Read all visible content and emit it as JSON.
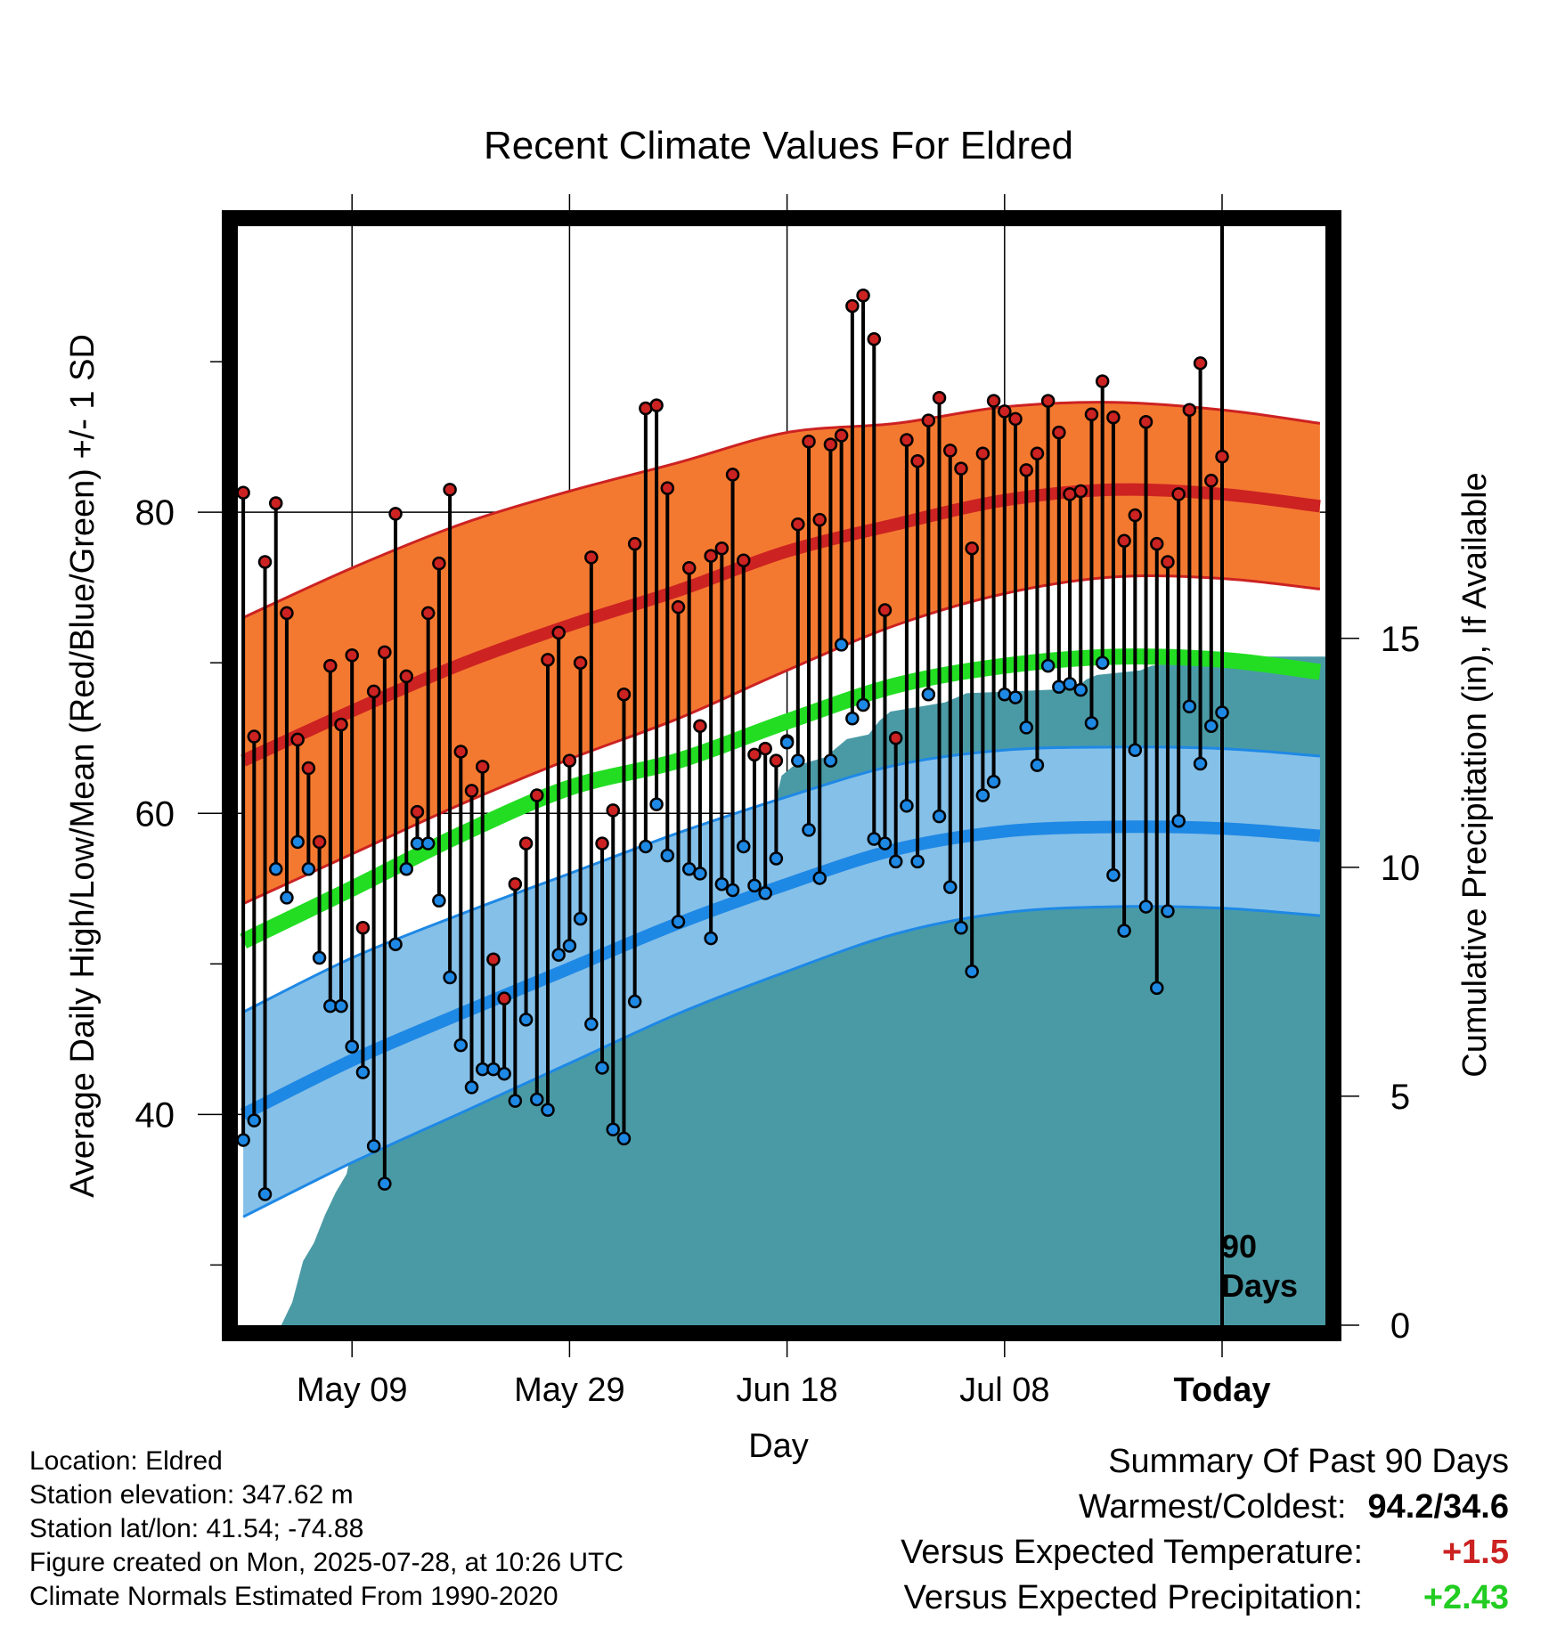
{
  "chart_data": {
    "type": "line",
    "title": "Recent Climate Values For Eldred",
    "xlabel": "Day",
    "ylabel": "Average Daily High/Low/Mean (Red/Blue/Green) +/- 1 SD",
    "y2label": "Cumulative Precipitation (in), If Available",
    "ylim": [
      26,
      99
    ],
    "y2lim": [
      0,
      24
    ],
    "xlim": [
      -0.5,
      99.5
    ],
    "x_tick_days": [
      10,
      30,
      50,
      70,
      90
    ],
    "x_tick_labels": [
      "May 09",
      "May 29",
      "Jun 18",
      "Jul 08",
      "Today"
    ],
    "y_ticks": [
      40,
      60,
      80
    ],
    "y_minor_ticks": [
      30,
      50,
      70,
      90
    ],
    "y2_ticks": [
      0,
      5,
      10,
      15
    ],
    "today_label": "90 Days",
    "grid": true,
    "colors": {
      "high": "#cc2222",
      "high_band": "#f47930",
      "low": "#1e88e5",
      "low_band": "#85c0e8",
      "mean": "#22dd22",
      "precip": "#4a9aa5"
    },
    "normals": {
      "x": [
        0,
        10,
        20,
        30,
        40,
        50,
        60,
        70,
        80,
        90,
        99
      ],
      "high_mean": [
        63.5,
        66.8,
        69.9,
        72.5,
        74.8,
        77.4,
        79.2,
        80.8,
        81.5,
        81.2,
        80.4
      ],
      "high_sd": [
        9.5,
        9.5,
        9.3,
        8.9,
        8.5,
        7.9,
        6.7,
        6.2,
        5.8,
        5.6,
        5.5
      ],
      "low_mean": [
        40.0,
        43.6,
        46.7,
        49.7,
        52.7,
        55.3,
        57.6,
        58.8,
        59.1,
        59.0,
        58.5
      ],
      "low_sd": [
        6.8,
        6.8,
        6.6,
        6.3,
        6.0,
        5.8,
        5.6,
        5.4,
        5.3,
        5.3,
        5.3
      ],
      "mean_mean": [
        51.5,
        55.0,
        58.6,
        61.7,
        63.5,
        66.1,
        68.5,
        69.8,
        70.4,
        70.2,
        69.4
      ]
    },
    "series": [
      {
        "name": "High",
        "values": [
          81.3,
          65.1,
          76.7,
          80.6,
          73.3,
          64.9,
          63.0,
          58.1,
          69.8,
          65.9,
          70.5,
          52.4,
          68.1,
          70.7,
          79.9,
          69.1,
          60.1,
          73.3,
          76.6,
          81.5,
          64.1,
          61.5,
          63.1,
          50.3,
          47.7,
          55.3,
          58.0,
          61.2,
          70.2,
          72.0,
          63.5,
          70.0,
          77.0,
          58.0,
          60.2,
          67.9,
          77.9,
          86.9,
          87.1,
          81.6,
          73.7,
          76.3,
          65.8,
          77.1,
          77.6,
          82.5,
          76.8,
          63.9,
          64.3,
          63.5,
          64.8,
          79.2,
          84.7,
          79.5,
          84.5,
          85.1,
          93.7,
          94.4,
          91.5,
          73.5,
          65.0,
          84.8,
          83.4,
          86.1,
          87.6,
          84.1,
          82.9,
          77.6,
          83.9,
          87.4,
          86.7,
          86.2,
          82.8,
          83.9,
          87.4,
          85.3,
          81.2,
          81.4,
          86.5,
          88.7,
          86.3,
          78.1,
          79.8,
          86.0,
          77.9,
          76.7,
          81.2,
          86.8,
          89.9,
          82.1,
          83.7
        ],
        "lows": [
          38.3,
          39.6,
          34.7,
          56.3,
          54.4,
          58.1,
          56.3,
          50.4,
          47.2,
          47.2,
          44.5,
          42.8,
          37.9,
          35.4,
          51.3,
          56.3,
          58.0,
          58.0,
          54.2,
          49.1,
          44.6,
          41.8,
          43.0,
          43.0,
          42.7,
          40.9,
          46.3,
          41.0,
          40.3,
          50.6,
          51.2,
          53.0,
          46.0,
          43.1,
          39.0,
          38.4,
          47.5,
          57.8,
          60.6,
          57.2,
          52.8,
          56.3,
          56.0,
          51.7,
          55.3,
          54.9,
          57.8,
          55.2,
          54.7,
          57.0,
          64.7,
          63.5,
          58.9,
          55.7,
          63.5,
          71.2,
          66.3,
          67.2,
          58.3,
          58.0,
          56.8,
          60.5,
          56.8,
          67.9,
          59.8,
          55.1,
          52.4,
          49.5,
          61.2,
          62.1,
          67.9,
          67.7,
          65.7,
          63.2,
          69.8,
          68.4,
          68.6,
          68.2,
          66.0,
          70.0,
          55.9,
          52.2,
          64.2,
          53.8,
          48.4,
          53.5,
          59.5,
          67.1,
          63.3,
          65.8,
          66.7
        ]
      },
      {
        "name": "Cumulative Precipitation",
        "x": [
          -0.5,
          3.5,
          4.5,
          5.5,
          6.5,
          7.5,
          8.5,
          9.5,
          10.5,
          11.5,
          13.5,
          14.5,
          15.5,
          16.5,
          17.5,
          18.5,
          21.5,
          22.5,
          23.5,
          24.5,
          25.5,
          26.5,
          30.5,
          31.5,
          32.5,
          37.5,
          38.5,
          39.5,
          40.5,
          41.5,
          45.5,
          46.5,
          47.5,
          48.5,
          49.5,
          50.5,
          53.5,
          54.5,
          55.5,
          57.5,
          58.5,
          59.5,
          64.5,
          65.5,
          66.5,
          76.5,
          77.5,
          78.5,
          82.5,
          83.5,
          86.5,
          87.5,
          88.5,
          99.5
        ],
        "values": [
          0,
          0,
          0.5,
          1.4,
          1.8,
          2.4,
          2.9,
          3.3,
          4.4,
          4.4,
          4.5,
          4.9,
          5.0,
          5.1,
          5.3,
          5.3,
          5.4,
          5.8,
          6.1,
          6.3,
          6.4,
          6.5,
          6.6,
          8.9,
          9.0,
          9.1,
          9.5,
          9.7,
          9.8,
          9.8,
          10.1,
          10.5,
          10.7,
          11.0,
          12.0,
          12.2,
          12.4,
          12.6,
          12.8,
          12.9,
          13.2,
          13.4,
          13.6,
          13.7,
          13.8,
          13.9,
          14.1,
          14.2,
          14.3,
          14.4,
          14.5,
          14.5,
          14.6,
          14.6
        ]
      }
    ]
  },
  "footer": {
    "location": "Location: Eldred",
    "elevation": "Station elevation: 347.62 m",
    "latlon": "Station lat/lon: 41.54; -74.88",
    "created": "Figure created on Mon, 2025-07-28, at 10:26 UTC",
    "normals": "Climate Normals Estimated From 1990-2020"
  },
  "summary": {
    "title": "Summary Of Past 90 Days",
    "warm_cold_label": "Warmest/Coldest:",
    "warm_cold_value": "94.2/34.6",
    "temp_label": "Versus Expected Temperature:",
    "temp_value": "+1.5",
    "temp_color": "#cc2222",
    "precip_label": "Versus Expected Precipitation:",
    "precip_value": "+2.43",
    "precip_color": "#22cc22"
  }
}
